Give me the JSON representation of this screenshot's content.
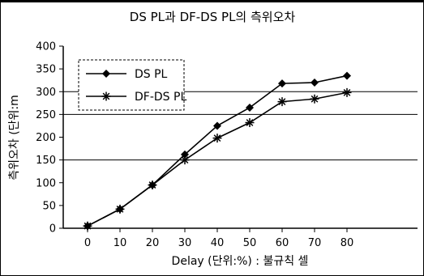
{
  "chart_data": {
    "type": "line",
    "title": "DS PL과 DF-DS PL의 측위오차",
    "xlabel": "Delay (단위:%) : 불규칙 셀",
    "ylabel": "측위오차 (단위:m",
    "categories": [
      "0",
      "10",
      "20",
      "30",
      "40",
      "50",
      "60",
      "70",
      "80"
    ],
    "x": [
      0,
      10,
      20,
      30,
      40,
      50,
      60,
      70,
      80
    ],
    "ylim": [
      0,
      400
    ],
    "yticks": [
      0,
      50,
      100,
      150,
      200,
      250,
      300,
      350,
      400
    ],
    "grid": "horizontal at 150, 250, 300",
    "legend": "top-left",
    "series": [
      {
        "name": "DS PL",
        "marker": "diamond",
        "color": "#000000",
        "values": [
          5,
          42,
          95,
          162,
          225,
          265,
          318,
          320,
          335
        ]
      },
      {
        "name": "DF-DS PL",
        "marker": "asterisk",
        "color": "#000000",
        "values": [
          5,
          42,
          95,
          150,
          198,
          232,
          278,
          284,
          298
        ]
      }
    ]
  }
}
